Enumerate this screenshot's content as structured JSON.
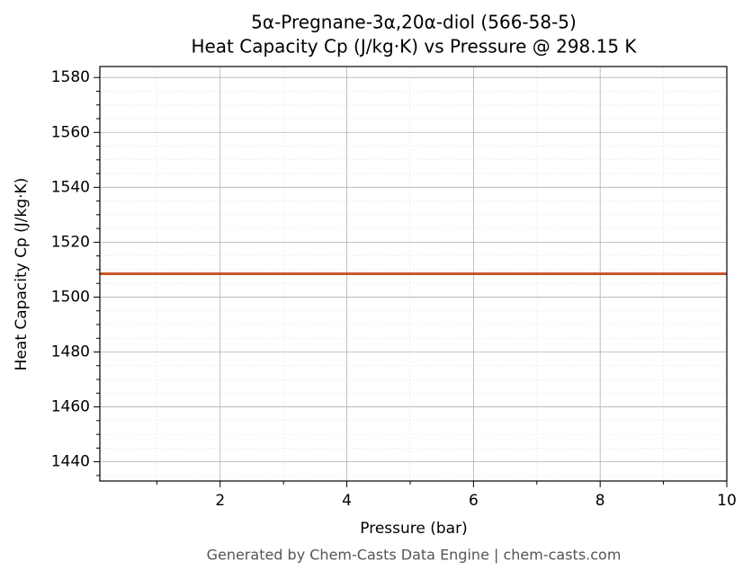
{
  "chart_data": {
    "type": "line",
    "title": "5α-Pregnane-3α,20α-diol (566-58-5)",
    "subtitle": "Heat Capacity Cp (J/kg·K) vs Pressure @ 298.15 K",
    "x_label": "Pressure (bar)",
    "y_label": "Heat Capacity Cp (J/kg·K)",
    "footer": "Generated by Chem-Casts Data Engine | chem-casts.com",
    "x": [
      0.1,
      10
    ],
    "series": [
      {
        "name": "Heat Capacity Cp",
        "color": "#c8562a",
        "values": [
          1508.5,
          1508.5
        ]
      }
    ],
    "xlim": [
      0.1,
      10
    ],
    "ylim": [
      1433,
      1584
    ],
    "xticks": [
      2,
      4,
      6,
      8,
      10
    ],
    "yticks": [
      1440,
      1460,
      1480,
      1500,
      1520,
      1540,
      1560,
      1580
    ],
    "xminorticks": [
      1,
      3,
      5,
      7,
      9
    ],
    "yminorticks": [
      1435,
      1445,
      1450,
      1455,
      1465,
      1470,
      1475,
      1485,
      1490,
      1495,
      1505,
      1510,
      1515,
      1525,
      1530,
      1535,
      1545,
      1550,
      1555,
      1565,
      1570,
      1575
    ],
    "grid": true
  }
}
